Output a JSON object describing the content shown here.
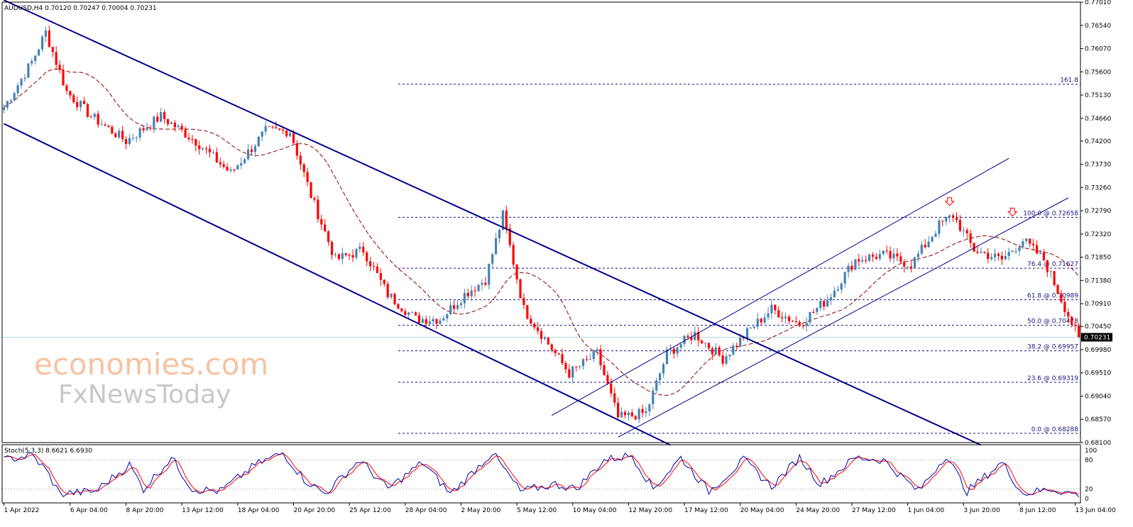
{
  "header": {
    "symbol_info": "AUDUSD,H4 0.70120 0.70247 0.70004 0.70231"
  },
  "stoch": {
    "label": "Stoch(5,3,3) 8.6621 6.6930",
    "levels": [
      "100",
      "80",
      "20",
      "0"
    ],
    "level_values": [
      100,
      80,
      20,
      0
    ],
    "k_color": "#0000aa",
    "d_color": "#ff0000"
  },
  "watermark": {
    "line1": "economies.com",
    "line2": "FxNewsToday"
  },
  "colors": {
    "bull": "#4682b4",
    "bear": "#ff0000",
    "channel": "#00008b",
    "fib": "#14147e",
    "ma": "#8b0000",
    "current_line": "#add8e6",
    "arrow": "#ff0000"
  },
  "chart_data": {
    "type": "candlestick",
    "symbol": "AUDUSD",
    "timeframe": "H4",
    "ylim": [
      0.681,
      0.7701
    ],
    "price_ticks": [
      0.7701,
      0.7654,
      0.7607,
      0.756,
      0.7513,
      0.7466,
      0.742,
      0.7373,
      0.7326,
      0.7279,
      0.7232,
      0.7185,
      0.7138,
      0.7091,
      0.7045,
      0.6998,
      0.6951,
      0.6904,
      0.6857,
      0.681
    ],
    "price_tick_labels": [
      "0.77010",
      "0.76540",
      "0.76070",
      "0.75600",
      "0.75130",
      "0.74660",
      "0.74200",
      "0.73730",
      "0.73260",
      "0.72790",
      "0.72320",
      "0.71850",
      "0.71380",
      "0.70910",
      "0.70450",
      "0.69980",
      "0.69510",
      "0.69040",
      "0.68570",
      "0.68100"
    ],
    "time_labels": [
      "1 Apr 2022",
      "6 Apr 04:00",
      "8 Apr 20:00",
      "13 Apr 12:00",
      "18 Apr 04:00",
      "20 Apr 20:00",
      "25 Apr 12:00",
      "28 Apr 04:00",
      "2 May 20:00",
      "5 May 12:00",
      "10 May 04:00",
      "12 May 20:00",
      "17 May 12:00",
      "20 May 04:00",
      "24 May 20:00",
      "27 May 12:00",
      "1 Jun 04:00",
      "3 Jun 20:00",
      "8 Jun 12:00",
      "13 Jun 04:00"
    ],
    "time_label_index": [
      0,
      19,
      35,
      51,
      67,
      83,
      99,
      115,
      131,
      147,
      163,
      179,
      195,
      211,
      227,
      243,
      259,
      275,
      291,
      307
    ],
    "current_price": 0.70231,
    "current_price_label": "0.70231",
    "fib_levels": [
      {
        "label": "161.8",
        "price": 0.7535
      },
      {
        "label": "100.0 @ 0.72658",
        "price": 0.72658
      },
      {
        "label": "76.4 @ 0.71627",
        "price": 0.71627
      },
      {
        "label": "61.8 @ 0.70989",
        "price": 0.70989
      },
      {
        "label": "50.0 @ 0.70473",
        "price": 0.70473
      },
      {
        "label": "38.2 @ 0.69957",
        "price": 0.69957
      },
      {
        "label": "23.6 @ 0.69319",
        "price": 0.69319
      },
      {
        "label": "0.0 @ 0.68288",
        "price": 0.68288
      }
    ],
    "trendlines": [
      {
        "name": "falling-channel-upper",
        "from": [
          0,
          0.7705
        ],
        "to": [
          280,
          0.6805
        ]
      },
      {
        "name": "falling-channel-lower",
        "from": [
          0,
          0.7455
        ],
        "to": [
          191,
          0.6805
        ]
      },
      {
        "name": "rising-channel-upper",
        "from": [
          157,
          0.6865
        ],
        "to": [
          288,
          0.7385
        ]
      },
      {
        "name": "rising-channel-lower",
        "from": [
          176,
          0.6821
        ],
        "to": [
          305,
          0.7305
        ]
      }
    ],
    "arrows": [
      {
        "index": 271,
        "price": 0.7291
      },
      {
        "index": 289,
        "price": 0.727
      }
    ],
    "ohlc_anchor": [
      [
        0,
        0.7488
      ],
      [
        8,
        0.758
      ],
      [
        12,
        0.764
      ],
      [
        18,
        0.752
      ],
      [
        25,
        0.747
      ],
      [
        35,
        0.742
      ],
      [
        45,
        0.747
      ],
      [
        55,
        0.742
      ],
      [
        65,
        0.7355
      ],
      [
        75,
        0.744
      ],
      [
        82,
        0.744
      ],
      [
        88,
        0.731
      ],
      [
        95,
        0.718
      ],
      [
        103,
        0.72
      ],
      [
        110,
        0.711
      ],
      [
        118,
        0.706
      ],
      [
        125,
        0.706
      ],
      [
        132,
        0.711
      ],
      [
        138,
        0.714
      ],
      [
        143,
        0.727
      ],
      [
        149,
        0.708
      ],
      [
        155,
        0.702
      ],
      [
        162,
        0.695
      ],
      [
        170,
        0.699
      ],
      [
        176,
        0.686
      ],
      [
        184,
        0.687
      ],
      [
        190,
        0.699
      ],
      [
        198,
        0.703
      ],
      [
        206,
        0.698
      ],
      [
        214,
        0.704
      ],
      [
        220,
        0.708
      ],
      [
        228,
        0.705
      ],
      [
        236,
        0.71
      ],
      [
        244,
        0.718
      ],
      [
        252,
        0.719
      ],
      [
        260,
        0.717
      ],
      [
        268,
        0.725
      ],
      [
        272,
        0.727
      ],
      [
        278,
        0.72
      ],
      [
        286,
        0.718
      ],
      [
        292,
        0.722
      ],
      [
        298,
        0.718
      ],
      [
        303,
        0.71
      ],
      [
        308,
        0.702
      ]
    ],
    "stoch_anchor": [
      [
        0,
        80
      ],
      [
        8,
        90
      ],
      [
        12,
        60
      ],
      [
        16,
        10
      ],
      [
        26,
        15
      ],
      [
        36,
        70
      ],
      [
        40,
        20
      ],
      [
        48,
        85
      ],
      [
        54,
        20
      ],
      [
        62,
        15
      ],
      [
        72,
        70
      ],
      [
        80,
        95
      ],
      [
        86,
        40
      ],
      [
        92,
        10
      ],
      [
        102,
        80
      ],
      [
        110,
        20
      ],
      [
        120,
        75
      ],
      [
        128,
        10
      ],
      [
        140,
        95
      ],
      [
        148,
        15
      ],
      [
        158,
        30
      ],
      [
        164,
        20
      ],
      [
        172,
        80
      ],
      [
        180,
        90
      ],
      [
        186,
        20
      ],
      [
        194,
        85
      ],
      [
        202,
        15
      ],
      [
        212,
        80
      ],
      [
        220,
        25
      ],
      [
        228,
        85
      ],
      [
        234,
        30
      ],
      [
        244,
        85
      ],
      [
        252,
        80
      ],
      [
        262,
        15
      ],
      [
        270,
        90
      ],
      [
        276,
        15
      ],
      [
        286,
        75
      ],
      [
        292,
        10
      ],
      [
        300,
        20
      ],
      [
        308,
        8
      ]
    ],
    "bar_count": 309
  }
}
